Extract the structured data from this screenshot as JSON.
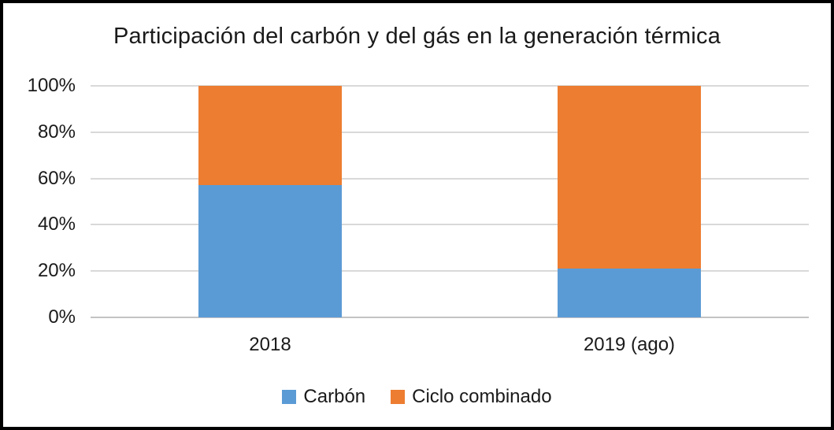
{
  "title": "Participación del carbón y del gás en la generación térmica",
  "colors": {
    "carbon_blue": "#5B9BD5",
    "ciclo_orange": "#ED7D31",
    "gridline": "#D9D9D9",
    "frame_border": "#000000",
    "text": "#1A1A1A"
  },
  "chart_data": {
    "type": "bar",
    "stacked": true,
    "orientation": "vertical",
    "title": "Participación del carbón y del gás en la generación térmica",
    "categories": [
      "2018",
      "2019 (ago)"
    ],
    "series": [
      {
        "name": "Carbón",
        "color": "#5B9BD5",
        "values": [
          57,
          21
        ]
      },
      {
        "name": "Ciclo combinado",
        "color": "#ED7D31",
        "values": [
          43,
          79
        ]
      }
    ],
    "xlabel": "",
    "ylabel": "",
    "ylim": [
      0,
      100
    ],
    "ytick_step": 20,
    "ytick_labels": [
      "0%",
      "20%",
      "40%",
      "60%",
      "80%",
      "100%"
    ],
    "grid": true,
    "legend_position": "bottom"
  }
}
